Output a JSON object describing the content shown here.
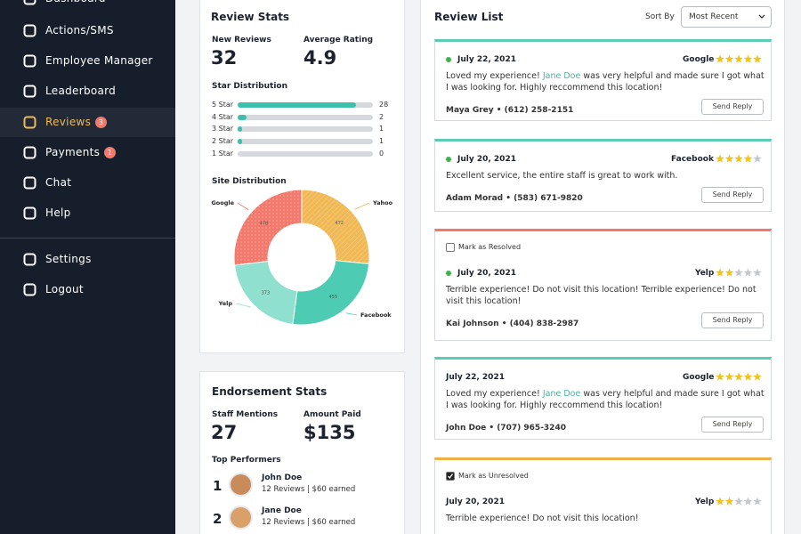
{
  "sidebar": {
    "items": [
      {
        "label": "Dashboard"
      },
      {
        "label": "Actions/SMS"
      },
      {
        "label": "Employee Manager"
      },
      {
        "label": "Leaderboard"
      },
      {
        "label": "Reviews",
        "badge": 3,
        "active": true
      },
      {
        "label": "Payments",
        "badge": 1
      },
      {
        "label": "Chat"
      },
      {
        "label": "Help"
      }
    ],
    "bottom_items": [
      {
        "label": "Settings"
      },
      {
        "label": "Logout"
      }
    ]
  },
  "review_stats": {
    "title": "Review Stats",
    "new_reviews": {
      "label": "New Reviews",
      "value": 32
    },
    "average_rating": {
      "label": "Average Rating",
      "value": 4.9
    },
    "star_distribution": {
      "title": "Star Distribution",
      "rows": [
        {
          "label": "5 Star",
          "count": 28
        },
        {
          "label": "4 Star",
          "count": 2
        },
        {
          "label": "3 Star",
          "count": 1
        },
        {
          "label": "2 Star",
          "count": 1
        },
        {
          "label": "1 Star",
          "count": 0
        }
      ]
    },
    "site_distribution": {
      "title": "Site Distribution",
      "slices": [
        {
          "name": "Yahoo",
          "value": 472,
          "color": "#f0b955"
        },
        {
          "name": "Facebook",
          "value": 455,
          "color": "#4ecbb3"
        },
        {
          "name": "Yelp",
          "value": 373,
          "color": "#8fe0cf"
        },
        {
          "name": "Google",
          "value": 478,
          "color": "#f2796b"
        }
      ]
    }
  },
  "endorsement_stats": {
    "title": "Endorsement Stats",
    "staff_mentions": {
      "label": "Staff Mentions",
      "value": 27
    },
    "amount_paid": {
      "label": "Amount Paid",
      "value": "$135"
    },
    "top_performers": {
      "title": "Top Performers",
      "people": [
        {
          "rank": 1,
          "name": "John Doe",
          "details": "12 Reviews | $60 earned"
        },
        {
          "rank": 2,
          "name": "Jane Doe",
          "details": "12 Reviews | $60 earned"
        }
      ]
    }
  },
  "review_list": {
    "title": "Review List",
    "sort_label": "Sort By",
    "sort_value": "Most Recent",
    "button_label": "Send Reply",
    "reviews": [
      {
        "date": "July 22, 2021",
        "site": "Google",
        "rating": 5,
        "unread": true,
        "color": "#5ccbb5",
        "text": [
          {
            "t": "Loved my experience! "
          },
          {
            "t": "Jane Doe",
            "link": true
          },
          {
            "t": " was very helpful and made sure I got what I was looking for. Highly reccommend this location!"
          }
        ],
        "contact": "Maya Grey • (612) 258-2151"
      },
      {
        "date": "July 20, 2021",
        "site": "Facebook",
        "rating": 4,
        "unread": true,
        "color": "#5ccbb5",
        "text": [
          {
            "t": "Excellent service, the entire staff is great to work with."
          }
        ],
        "contact": "Adam Morad  • (583) 671-9820"
      },
      {
        "date": "July 20, 2021",
        "site": "Yelp",
        "rating": 2,
        "unread": true,
        "color": "#f2796b",
        "resolve": {
          "label": "Mark as Resolved",
          "checked": false
        },
        "text": [
          {
            "t": "Terrible experience! Do not visit this location! Terrible experience! Do not visit this location!"
          }
        ],
        "contact": "Kai Johnson • (404) 838-2987"
      },
      {
        "date": "July 22, 2021",
        "site": "Google",
        "rating": 5,
        "unread": false,
        "color": "#5ccbb5",
        "text": [
          {
            "t": "Loved my experience! "
          },
          {
            "t": "Jane Doe",
            "link": true
          },
          {
            "t": " was very helpful and made sure I got what I was looking for. Highly reccommend this location!"
          }
        ],
        "contact": "John Doe • (707) 965-3240"
      },
      {
        "date": "July 20, 2021",
        "site": "Yelp",
        "rating": 2,
        "unread": false,
        "color": "#eeb045",
        "resolve": {
          "label": "Mark as Unresolved",
          "checked": true
        },
        "text": [
          {
            "t": "Terrible experience! Do not visit this location!"
          }
        ]
      }
    ]
  }
}
